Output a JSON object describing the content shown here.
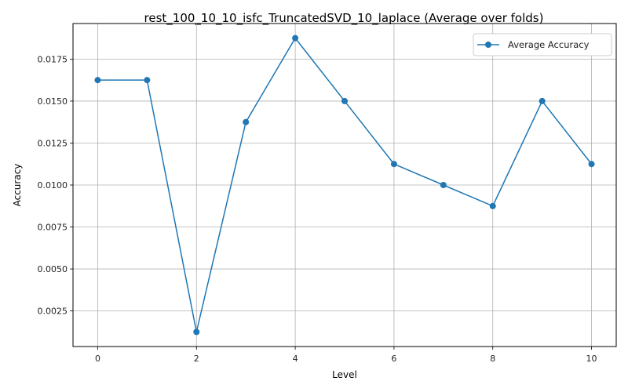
{
  "chart_data": {
    "type": "line",
    "title": "rest_100_10_10_isfc_TruncatedSVD_10_laplace (Average over folds)",
    "xlabel": "Level",
    "ylabel": "Accuracy",
    "x": [
      0,
      1,
      2,
      3,
      4,
      5,
      6,
      7,
      8,
      9,
      10
    ],
    "series": [
      {
        "name": "Average Accuracy",
        "color": "#1f77b4",
        "marker": "circle",
        "values": [
          0.01625,
          0.01625,
          0.00125,
          0.01375,
          0.01875,
          0.015,
          0.01125,
          0.01,
          0.00875,
          0.015,
          0.01125
        ]
      }
    ],
    "xlim": [
      -0.5,
      10.5
    ],
    "ylim": [
      0.00038,
      0.01962
    ],
    "xticks": [
      0,
      2,
      4,
      6,
      8,
      10
    ],
    "xtick_labels": [
      "0",
      "2",
      "4",
      "6",
      "8",
      "10"
    ],
    "yticks": [
      0.0025,
      0.005,
      0.0075,
      0.01,
      0.0125,
      0.015,
      0.0175
    ],
    "ytick_labels": [
      "0.0025",
      "0.0050",
      "0.0075",
      "0.0100",
      "0.0125",
      "0.0150",
      "0.0175"
    ],
    "grid": true,
    "legend_position": "top-right"
  }
}
